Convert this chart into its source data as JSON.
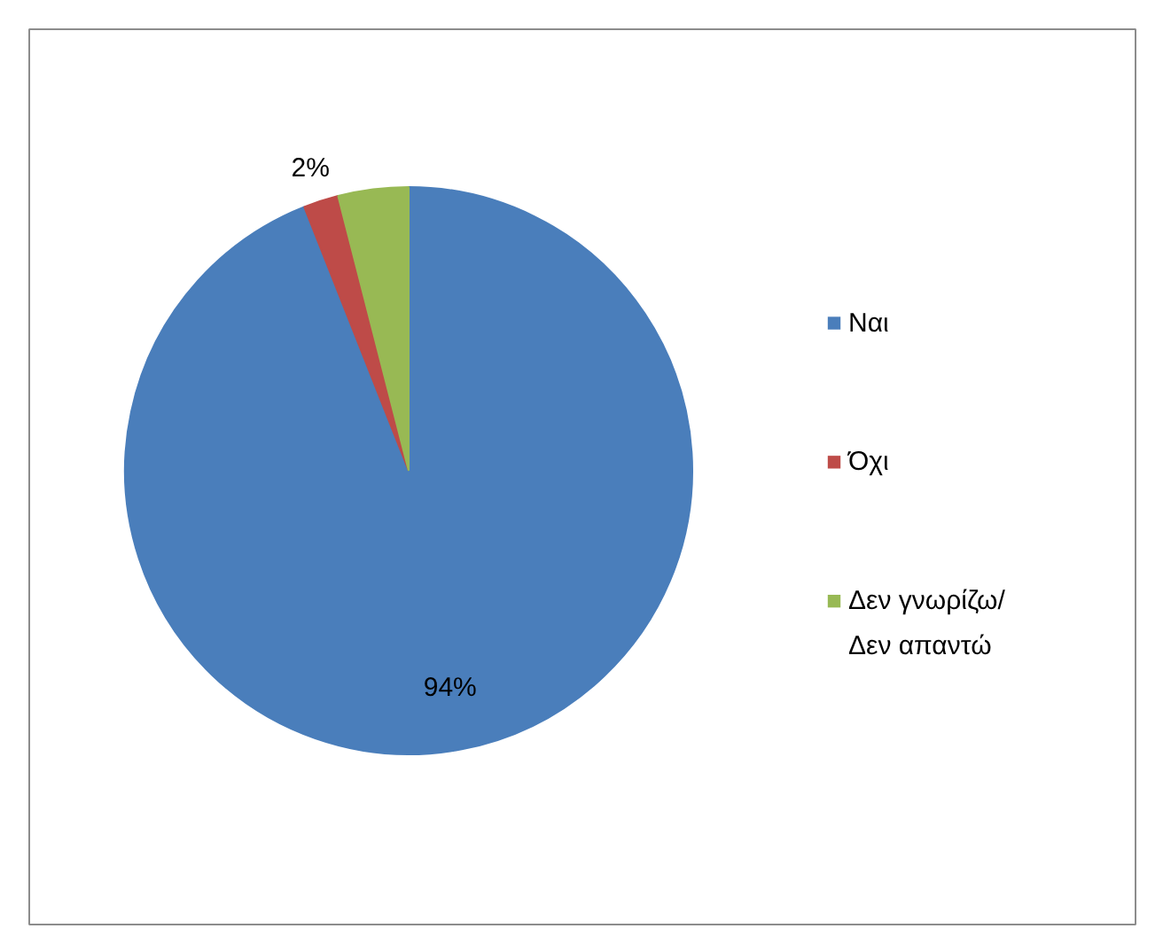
{
  "chart_data": {
    "type": "pie",
    "categories": [
      "Ναι",
      "Όχι",
      "Δεν γνωρίζω/ Δεν απαντώ"
    ],
    "values": [
      94,
      2,
      4
    ],
    "colors": [
      "#4a7ebb",
      "#be4b48",
      "#98b954"
    ],
    "value_labels": [
      "94%",
      "2%",
      null
    ],
    "legend": "right"
  }
}
